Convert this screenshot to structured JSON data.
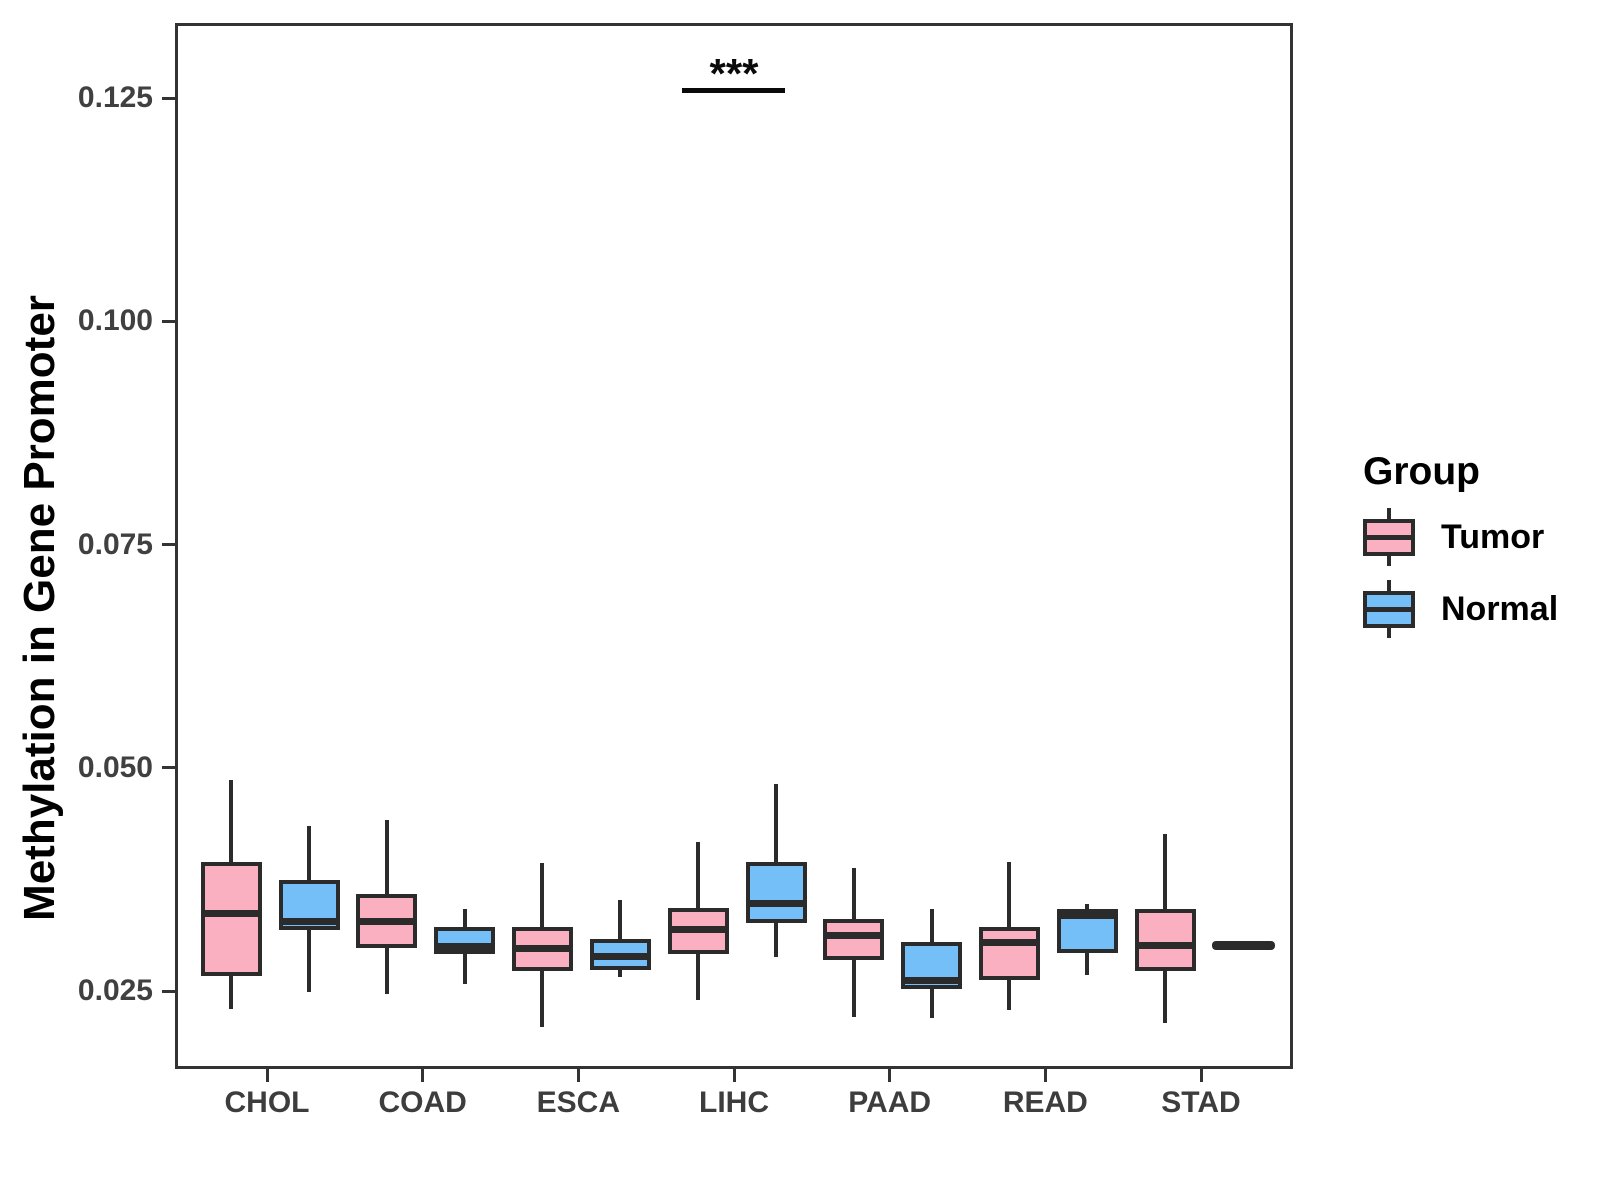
{
  "figure": {
    "background": "#ffffff"
  },
  "colors": {
    "tumor_fill": "#FBB0C2",
    "normal_fill": "#74BFF7",
    "box_border": "#2B2B2B",
    "panel_border": "#333333",
    "axis_tick_text": "#404040"
  },
  "chart_data": {
    "type": "boxplot",
    "title": "",
    "xlabel": "",
    "ylabel": "Methylation in Gene Promoter",
    "legend_title": "Group",
    "legend_position": "right",
    "grid": false,
    "categories": [
      "CHOL",
      "COAD",
      "ESCA",
      "LIHC",
      "PAAD",
      "READ",
      "STAD"
    ],
    "y_ticks": [
      0.025,
      0.05,
      0.075,
      0.1,
      0.125
    ],
    "y_tick_labels": [
      "0.025",
      "0.050",
      "0.075",
      "0.100",
      "0.125"
    ],
    "ylim": [
      0.0163,
      0.1334
    ],
    "series": [
      {
        "name": "Tumor",
        "color": "#FBB0C2",
        "boxes": [
          {
            "category": "CHOL",
            "min": 0.0233,
            "q1": 0.027,
            "median": 0.034,
            "q3": 0.0398,
            "max": 0.049
          },
          {
            "category": "COAD",
            "min": 0.025,
            "q1": 0.0302,
            "median": 0.0331,
            "q3": 0.0362,
            "max": 0.0445
          },
          {
            "category": "ESCA",
            "min": 0.0213,
            "q1": 0.0276,
            "median": 0.0301,
            "q3": 0.0325,
            "max": 0.0397
          },
          {
            "category": "LIHC",
            "min": 0.0244,
            "q1": 0.0295,
            "median": 0.0322,
            "q3": 0.0347,
            "max": 0.042
          },
          {
            "category": "PAAD",
            "min": 0.0225,
            "q1": 0.0288,
            "median": 0.0316,
            "q3": 0.0334,
            "max": 0.0391
          },
          {
            "category": "READ",
            "min": 0.0232,
            "q1": 0.0266,
            "median": 0.0308,
            "q3": 0.0325,
            "max": 0.0398
          },
          {
            "category": "STAD",
            "min": 0.0218,
            "q1": 0.0276,
            "median": 0.0305,
            "q3": 0.0345,
            "max": 0.043
          }
        ]
      },
      {
        "name": "Normal",
        "color": "#74BFF7",
        "boxes": [
          {
            "category": "CHOL",
            "min": 0.0252,
            "q1": 0.0322,
            "median": 0.0331,
            "q3": 0.0378,
            "max": 0.0438
          },
          {
            "category": "COAD",
            "min": 0.0262,
            "q1": 0.0295,
            "median": 0.0303,
            "q3": 0.0325,
            "max": 0.0345
          },
          {
            "category": "ESCA",
            "min": 0.0269,
            "q1": 0.0277,
            "median": 0.0292,
            "q3": 0.0312,
            "max": 0.0356
          },
          {
            "category": "LIHC",
            "min": 0.0292,
            "q1": 0.033,
            "median": 0.0352,
            "q3": 0.0398,
            "max": 0.0485
          },
          {
            "category": "PAAD",
            "min": 0.0223,
            "q1": 0.0256,
            "median": 0.0265,
            "q3": 0.0308,
            "max": 0.0346
          },
          {
            "category": "READ",
            "min": 0.0272,
            "q1": 0.0296,
            "median": 0.0338,
            "q3": 0.0346,
            "max": 0.0351
          },
          {
            "category": "STAD",
            "min": 0.0305,
            "q1": 0.0305,
            "median": 0.0305,
            "q3": 0.0305,
            "max": 0.0305
          }
        ]
      }
    ],
    "significance": {
      "label": "***",
      "category": "LIHC",
      "line_y": 0.1258
    }
  }
}
